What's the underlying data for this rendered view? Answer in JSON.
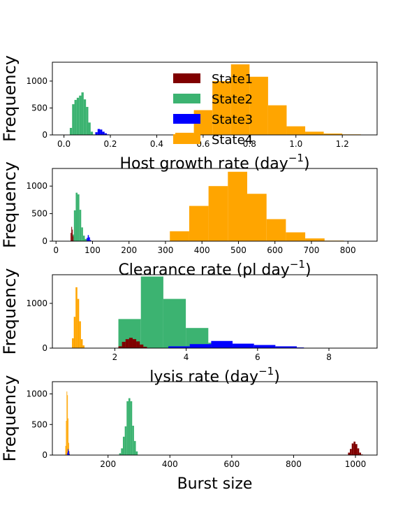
{
  "chart_data": [
    {
      "type": "bar",
      "subtype": "histogram",
      "xlabel": "Host growth rate (day",
      "xlabel_sup": "−1",
      "xlabel_suffix": ")",
      "ylabel": "Frequency",
      "xlim": [
        -0.05,
        1.35
      ],
      "ylim": [
        0,
        1350
      ],
      "xticks": [
        0.0,
        0.2,
        0.4,
        0.6,
        0.8,
        1.0,
        1.2
      ],
      "xtick_labels": [
        "0.0",
        "0.2",
        "0.4",
        "0.6",
        "0.8",
        "1.0",
        "1.2"
      ],
      "yticks": [
        0,
        500,
        1000
      ],
      "ytick_labels": [
        "0",
        "500",
        "1000"
      ],
      "legend": {
        "placement": "upper-center",
        "entries": [
          {
            "label": "State1",
            "color": "#800000"
          },
          {
            "label": "State2",
            "color": "#3cb371"
          },
          {
            "label": "State3",
            "color": "#0000ff"
          },
          {
            "label": "State4",
            "color": "#ffa500"
          }
        ]
      },
      "series": [
        {
          "name": "State4",
          "color": "#ffa500",
          "bins": [
            0.48,
            0.56,
            0.64,
            0.72,
            0.8,
            0.88,
            0.96,
            1.04,
            1.12,
            1.2,
            1.28
          ],
          "counts": [
            40,
            460,
            1000,
            1310,
            1080,
            550,
            160,
            60,
            25,
            10
          ]
        },
        {
          "name": "State2",
          "color": "#3cb371",
          "bins": [
            0.025,
            0.035,
            0.045,
            0.055,
            0.065,
            0.075,
            0.085,
            0.095,
            0.105,
            0.115,
            0.125,
            0.135
          ],
          "counts": [
            130,
            570,
            650,
            690,
            730,
            790,
            660,
            520,
            230,
            60,
            10
          ]
        },
        {
          "name": "State3",
          "color": "#0000ff",
          "bins": [
            0.135,
            0.145,
            0.155,
            0.165,
            0.175,
            0.185,
            0.195
          ],
          "counts": [
            50,
            110,
            100,
            60,
            30,
            10
          ]
        }
      ]
    },
    {
      "type": "bar",
      "subtype": "histogram",
      "xlabel": "Clearance rate (pl day",
      "xlabel_sup": "−1",
      "xlabel_suffix": ")",
      "ylabel": "Frequency",
      "xlim": [
        -10,
        880
      ],
      "ylim": [
        0,
        1320
      ],
      "xticks": [
        0,
        100,
        200,
        300,
        400,
        500,
        600,
        700,
        800
      ],
      "xtick_labels": [
        "0",
        "100",
        "200",
        "300",
        "400",
        "500",
        "600",
        "700",
        "800"
      ],
      "yticks": [
        0,
        500,
        1000
      ],
      "ytick_labels": [
        "0",
        "500",
        "1000"
      ],
      "series": [
        {
          "name": "State4",
          "color": "#ffa500",
          "bins": [
            312,
            365,
            418,
            471,
            524,
            577,
            630,
            683,
            736,
            789
          ],
          "counts": [
            180,
            640,
            1000,
            1260,
            860,
            400,
            160,
            50,
            10
          ]
        },
        {
          "name": "State2",
          "color": "#3cb371",
          "bins": [
            44,
            49,
            54,
            59,
            64,
            69,
            74,
            79,
            84,
            89
          ],
          "counts": [
            120,
            560,
            880,
            850,
            570,
            250,
            100,
            40,
            10
          ]
        },
        {
          "name": "State1",
          "color": "#800000",
          "bins": [
            40,
            42,
            44,
            46,
            48
          ],
          "counts": [
            150,
            260,
            210,
            90
          ]
        },
        {
          "name": "State3",
          "color": "#0000ff",
          "bins": [
            84,
            87,
            90,
            93,
            96
          ],
          "counts": [
            60,
            110,
            70,
            20
          ]
        }
      ]
    },
    {
      "type": "bar",
      "subtype": "histogram",
      "xlabel": "lysis rate (day",
      "xlabel_sup": "−1",
      "xlabel_suffix": ")",
      "ylabel": "Frequency",
      "xlim": [
        0.25,
        9.35
      ],
      "ylim": [
        0,
        1640
      ],
      "xticks": [
        2,
        4,
        6,
        8
      ],
      "xtick_labels": [
        "2",
        "4",
        "6",
        "8"
      ],
      "yticks": [
        0,
        1000
      ],
      "ytick_labels": [
        "0",
        "1000"
      ],
      "series": [
        {
          "name": "State4",
          "color": "#ffa500",
          "bins": [
            0.8,
            0.85,
            0.9,
            0.95,
            1.0,
            1.05,
            1.1,
            1.15
          ],
          "counts": [
            220,
            700,
            1360,
            1100,
            600,
            200,
            60
          ]
        },
        {
          "name": "State2",
          "color": "#3cb371",
          "bins": [
            2.1,
            2.73,
            3.36,
            3.99,
            4.62,
            5.25,
            5.88
          ],
          "counts": [
            650,
            1600,
            1100,
            450,
            120,
            30
          ]
        },
        {
          "name": "State3",
          "color": "#0000ff",
          "bins": [
            3.5,
            4.1,
            4.7,
            5.3,
            5.9,
            6.5,
            7.1,
            7.3
          ],
          "counts": [
            40,
            90,
            160,
            100,
            70,
            40,
            15
          ]
        },
        {
          "name": "State1",
          "color": "#800000",
          "bins": [
            2.1,
            2.2,
            2.3,
            2.4,
            2.5,
            2.6,
            2.7,
            2.8,
            2.9
          ],
          "counts": [
            40,
            140,
            200,
            230,
            200,
            150,
            80,
            30
          ]
        }
      ]
    },
    {
      "type": "bar",
      "subtype": "histogram",
      "xlabel": "Burst size",
      "xlabel_sup": "",
      "xlabel_suffix": "",
      "ylabel": "Frequency",
      "xlim": [
        20,
        1070
      ],
      "ylim": [
        0,
        1200
      ],
      "xticks": [
        200,
        400,
        600,
        800,
        1000
      ],
      "xtick_labels": [
        "200",
        "400",
        "600",
        "800",
        "1000"
      ],
      "yticks": [
        0,
        500,
        1000
      ],
      "ytick_labels": [
        "0",
        "500",
        "1000"
      ],
      "series": [
        {
          "name": "State4",
          "color": "#ffa500",
          "bins": [
            62,
            64,
            66,
            68,
            70,
            72,
            74,
            76
          ],
          "counts": [
            150,
            560,
            1040,
            980,
            600,
            200,
            60
          ]
        },
        {
          "name": "State3",
          "color": "#0000ff",
          "bins": [
            68,
            70,
            72,
            74,
            76
          ],
          "counts": [
            40,
            100,
            70,
            20
          ]
        },
        {
          "name": "State2",
          "color": "#3cb371",
          "bins": [
            236,
            242,
            248,
            254,
            260,
            266,
            272,
            278,
            284,
            290,
            296
          ],
          "counts": [
            30,
            110,
            300,
            470,
            880,
            930,
            880,
            480,
            230,
            60
          ]
        },
        {
          "name": "State1",
          "color": "#800000",
          "bins": [
            976,
            982,
            988,
            994,
            1000,
            1006,
            1012,
            1018,
            1024
          ],
          "counts": [
            40,
            100,
            190,
            220,
            180,
            110,
            40,
            10
          ]
        }
      ]
    }
  ]
}
